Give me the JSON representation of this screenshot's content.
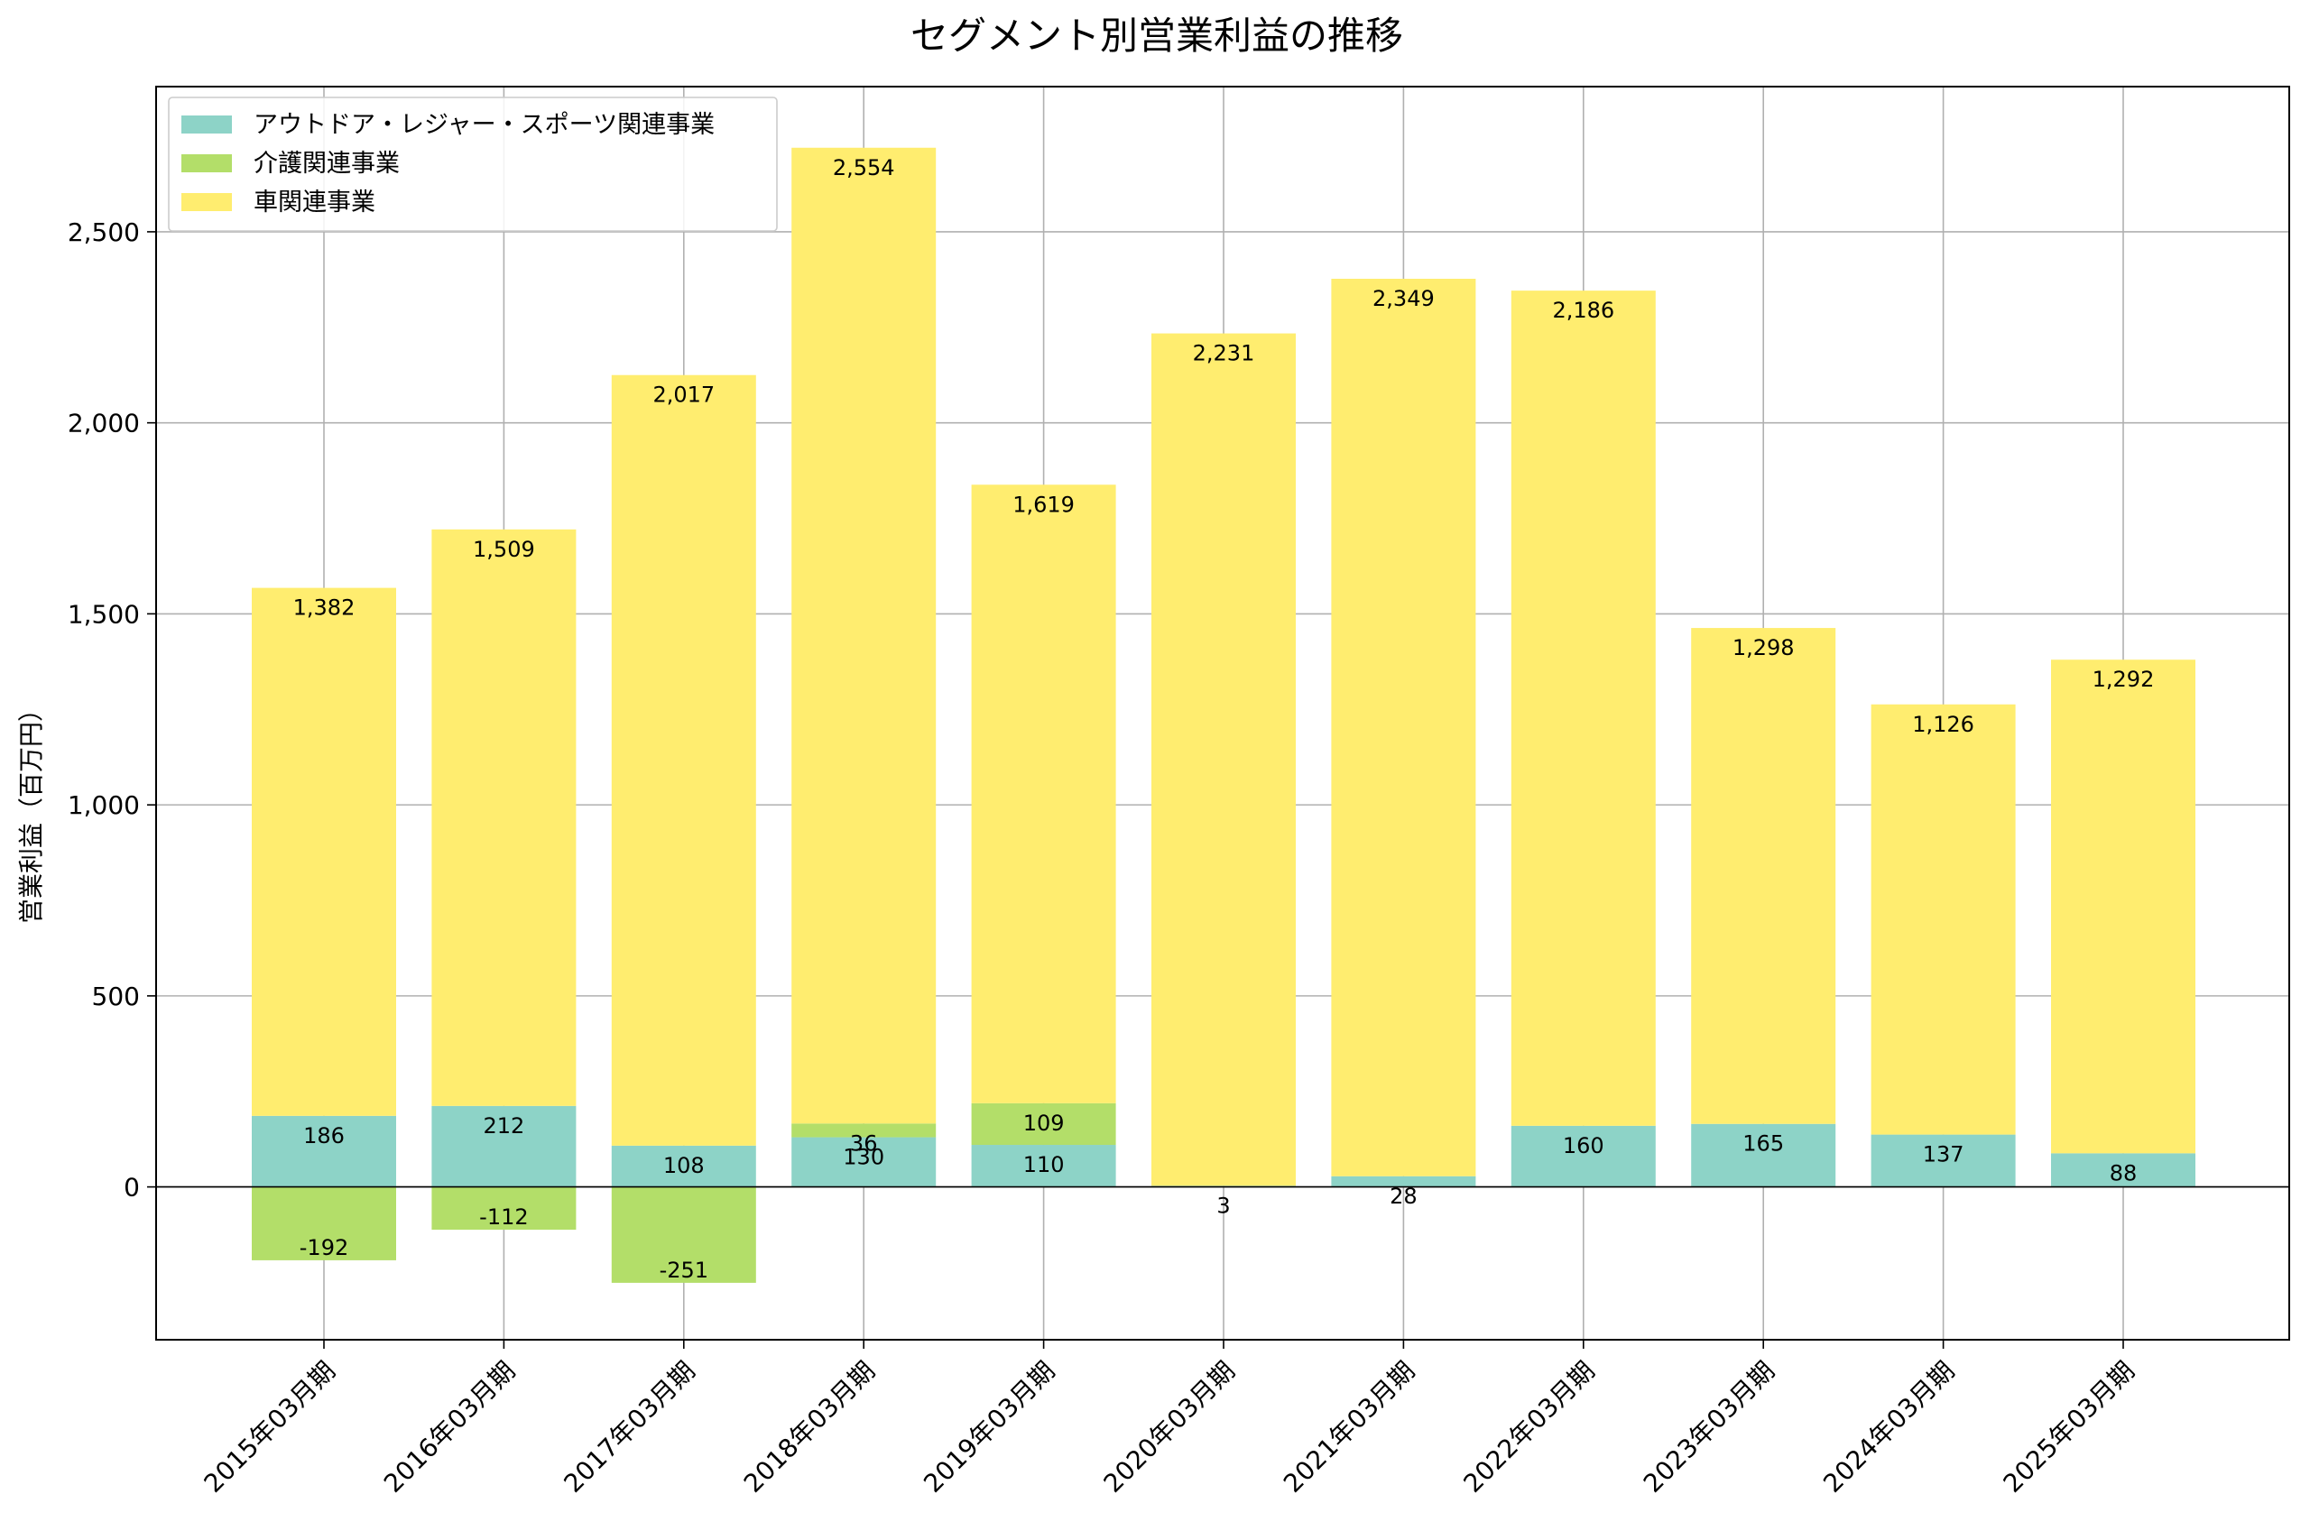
{
  "chart_data": {
    "type": "bar",
    "stacked": true,
    "title": "セグメント別営業利益の推移",
    "xlabel": "",
    "ylabel": "営業利益（百万円）",
    "ylim": [
      -400,
      2880
    ],
    "yticks": [
      0,
      500,
      1000,
      1500,
      2000,
      2500
    ],
    "ytick_labels": [
      "0",
      "500",
      "1,000",
      "1,500",
      "2,000",
      "2,500"
    ],
    "grid": true,
    "legend_position": "top-left",
    "categories": [
      "2015年03月期",
      "2016年03月期",
      "2017年03月期",
      "2018年03月期",
      "2019年03月期",
      "2020年03月期",
      "2021年03月期",
      "2022年03月期",
      "2023年03月期",
      "2024年03月期",
      "2025年03月期"
    ],
    "series": [
      {
        "name": "アウトドア・レジャー・スポーツ関連事業",
        "color": "#8dd3c7",
        "values": [
          186,
          212,
          108,
          130,
          110,
          3,
          28,
          160,
          165,
          137,
          88
        ],
        "labels": [
          "186",
          "212",
          "108",
          "130",
          "110",
          "3",
          "28",
          "160",
          "165",
          "137",
          "88"
        ]
      },
      {
        "name": "介護関連事業",
        "color": "#b3de69",
        "values": [
          -192,
          -112,
          -251,
          36,
          109,
          null,
          null,
          null,
          null,
          null,
          null
        ],
        "labels": [
          "-192",
          "-112",
          "-251",
          "36",
          "109",
          "",
          "",
          "",
          "",
          "",
          ""
        ]
      },
      {
        "name": "車関連事業",
        "color": "#ffed6f",
        "values": [
          1382,
          1509,
          2017,
          2554,
          1619,
          2231,
          2349,
          2186,
          1298,
          1126,
          1292
        ],
        "labels": [
          "1,382",
          "1,509",
          "2,017",
          "2,554",
          "1,619",
          "2,231",
          "2,349",
          "2,186",
          "1,298",
          "1,126",
          "1,292"
        ]
      }
    ]
  }
}
